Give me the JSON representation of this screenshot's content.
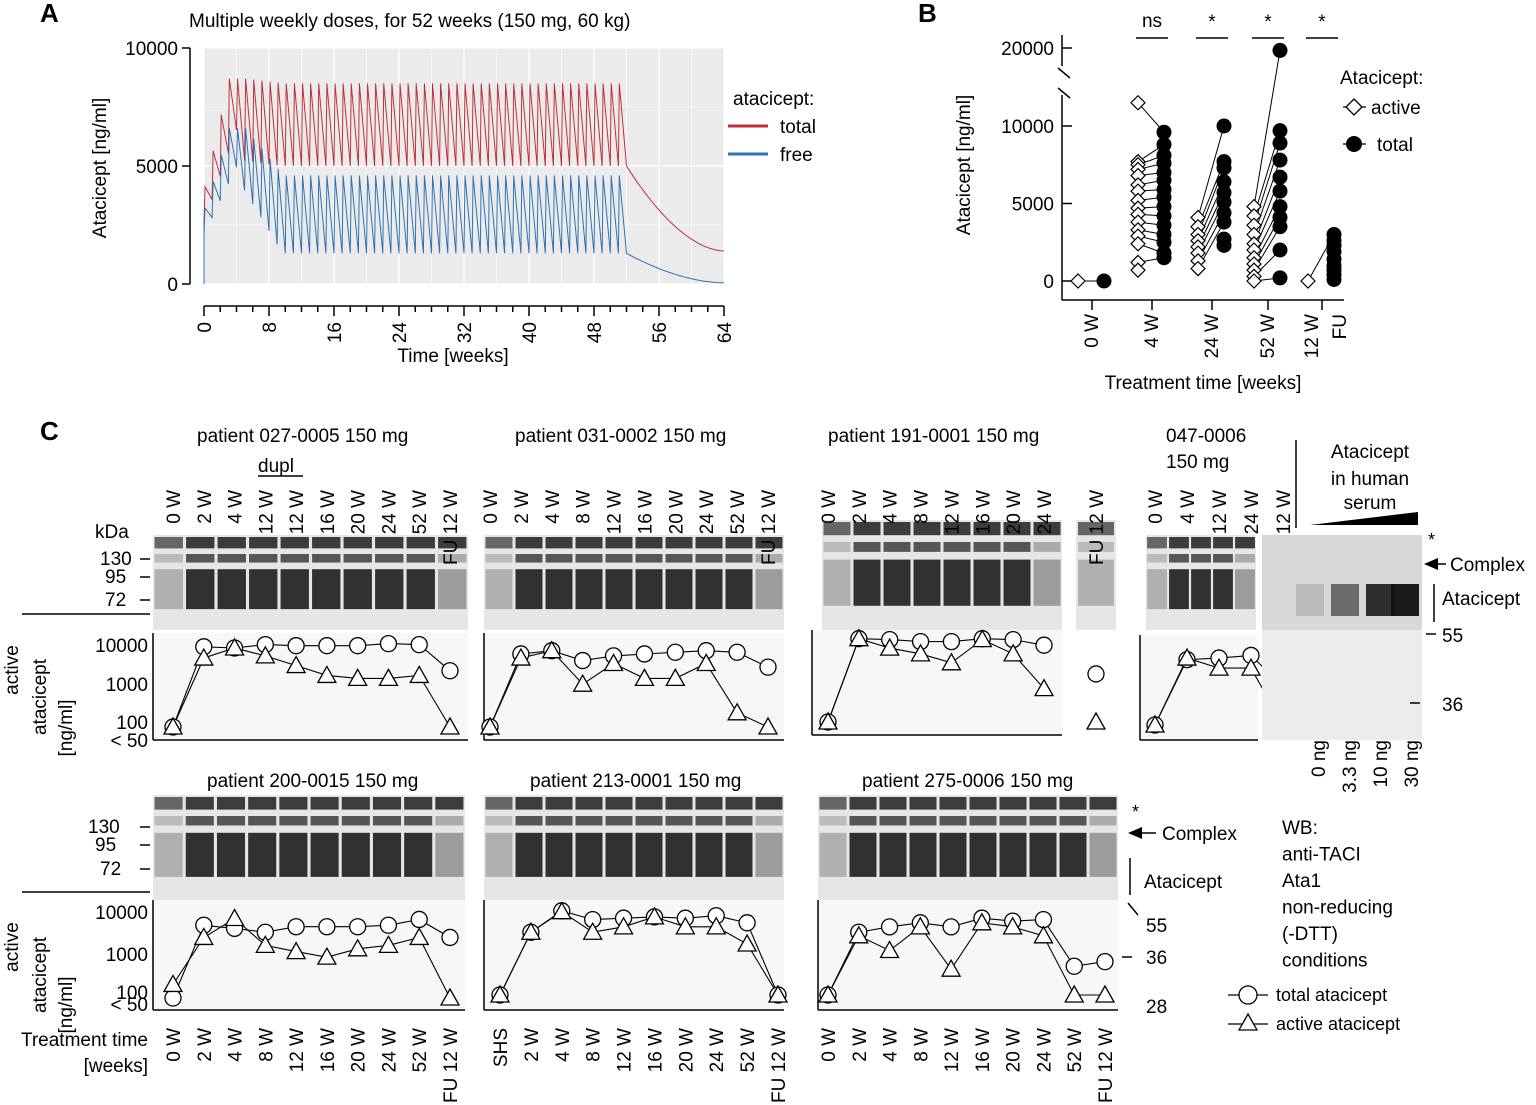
{
  "panels": {
    "A": {
      "letter": "A"
    },
    "B": {
      "letter": "B"
    },
    "C": {
      "letter": "C"
    }
  },
  "chart_data": [
    {
      "id": "A",
      "type": "line",
      "title": "Multiple weekly doses, for 52 weeks (150 mg, 60 kg)",
      "xlabel": "Time [weeks]",
      "ylabel": "Atacicept [ng/ml]",
      "xlim": [
        0,
        64
      ],
      "ylim": [
        0,
        10000
      ],
      "xticks": [
        0,
        8,
        16,
        24,
        32,
        40,
        48,
        56,
        64
      ],
      "yticks": [
        0,
        5000,
        10000
      ],
      "grid": true,
      "legend": {
        "title": "atacicept:",
        "placement": "right"
      },
      "series": [
        {
          "name": "total",
          "color": "#c0303a",
          "dose_weeks": 52,
          "start": 2600,
          "peak_early": 8700,
          "peak_ss": 8500,
          "trough_ss": 5000,
          "end_value": 1400
        },
        {
          "name": "free",
          "color": "#2f73b5",
          "dose_weeks": 52,
          "start": 2100,
          "peak_early": 6600,
          "peak_ss": 4600,
          "trough_ss": 1300,
          "end_value": 50
        }
      ]
    },
    {
      "id": "B",
      "type": "scatter",
      "xlabel": "Treatment time [weeks]",
      "ylabel": "Atacicept [ng/ml]",
      "categories": [
        "0 W",
        "4 W",
        "24 W",
        "52 W",
        "12 W FU"
      ],
      "category_lines": [
        [
          "0 W"
        ],
        [
          "4 W"
        ],
        [
          "24 W"
        ],
        [
          "52 W"
        ],
        [
          "12 W",
          "FU"
        ]
      ],
      "yticks": [
        0,
        5000,
        10000,
        20000
      ],
      "axis_break": [
        12000,
        19000
      ],
      "significance": [
        "",
        "ns",
        "*",
        "*",
        "*"
      ],
      "legend": {
        "title": "Atacicept:",
        "entries": [
          "active",
          "total"
        ],
        "placement": "top-right"
      },
      "series": [
        {
          "name": "active",
          "marker": "open-diamond",
          "values": [
            [
              0
            ],
            [
              11500,
              7700,
              7500,
              7200,
              6800,
              6200,
              5800,
              5200,
              4700,
              4300,
              3800,
              3300,
              2900,
              2400,
              1200,
              700
            ],
            [
              4100,
              3500,
              3000,
              2600,
              2200,
              1800,
              1300,
              800
            ],
            [
              4800,
              4200,
              3600,
              3000,
              2400,
              2000,
              1500,
              1100,
              700,
              300,
              0
            ],
            [
              0
            ]
          ]
        },
        {
          "name": "total",
          "marker": "filled-circle",
          "values": [
            [
              0
            ],
            [
              9600,
              8800,
              8100,
              7600,
              7000,
              6500,
              5900,
              5400,
              4800,
              4200,
              3600,
              3000,
              2500,
              1800,
              1500
            ],
            [
              10000,
              7700,
              7300,
              6400,
              5700,
              5100,
              4400,
              3800,
              2700,
              2300
            ],
            [
              19800,
              9700,
              8900,
              7800,
              6700,
              5800,
              4800,
              4100,
              3500,
              2000,
              200
            ],
            [
              3000,
              2600,
              2300,
              1900,
              1400,
              1000,
              700,
              400,
              100
            ]
          ]
        }
      ]
    },
    {
      "id": "C",
      "type": "line",
      "ylabel": "active atacicept [ng/ml]",
      "yticks": [
        "10000",
        "1000",
        "100",
        "< 50"
      ],
      "xlabel": "Treatment time [weeks]",
      "series_names": [
        "total atacicept",
        "active atacicept"
      ],
      "blots": [
        {
          "title": "patient 027-0005 150 mg",
          "dupl": "dupl",
          "lanes": [
            "0 W",
            "2 W",
            "4 W",
            "12 W",
            "12 W",
            "16 W",
            "20 W",
            "24 W",
            "52 W",
            "FU 12 W"
          ],
          "total": [
            25,
            7000,
            6500,
            8000,
            7500,
            7500,
            7500,
            8500,
            8000,
            1600
          ],
          "active": [
            25,
            3500,
            6500,
            4000,
            2200,
            1200,
            1000,
            1000,
            1200,
            25
          ]
        },
        {
          "title": "patient 031-0002 150 mg",
          "lanes": [
            "0 W",
            "2 W",
            "4 W",
            "8 W",
            "12 W",
            "16 W",
            "20 W",
            "24 W",
            "52 W",
            "FU 12 W"
          ],
          "total": [
            25,
            4500,
            5500,
            3000,
            4000,
            4500,
            5000,
            5500,
            5000,
            2000
          ],
          "active": [
            25,
            3500,
            5500,
            700,
            2500,
            1000,
            1000,
            2500,
            120,
            30
          ]
        },
        {
          "title": "patient 191-0001 150 mg",
          "lanes": [
            "0 W",
            "2 W",
            "4 W",
            "8 W",
            "12 W",
            "16 W",
            "20 W",
            "24 W",
            "FU 12 W"
          ],
          "total": [
            25,
            9000,
            8500,
            7500,
            7500,
            9000,
            8500,
            6000,
            1000
          ],
          "active": [
            25,
            9000,
            5000,
            3500,
            2000,
            8500,
            3500,
            400,
            30
          ]
        },
        {
          "title": "047-0006",
          "title2": "150 mg",
          "lanes": [
            "0 W",
            "4 W",
            "12 W",
            "24 W",
            "FU 12 W"
          ],
          "total": [
            25,
            4500,
            5000,
            6000,
            700
          ],
          "active": [
            25,
            5000,
            2500,
            2500,
            30
          ]
        },
        {
          "title": "patient 200-0015 150 mg",
          "lanes": [
            "0 W",
            "2 W",
            "4 W",
            "8 W",
            "12 W",
            "16 W",
            "20 W",
            "24 W",
            "52 W",
            "FU 12 W"
          ],
          "total": [
            30,
            5500,
            4500,
            3500,
            5000,
            5000,
            5000,
            5500,
            8000,
            2500
          ],
          "active": [
            120,
            2500,
            8500,
            1500,
            1000,
            700,
            1200,
            1500,
            2500,
            40
          ]
        },
        {
          "title": "patient 213-0001 150 mg",
          "lanes": [
            "SHS",
            "2 W",
            "4 W",
            "8 W",
            "12 W",
            "16 W",
            "20 W",
            "24 W",
            "52 W",
            "FU 12 W"
          ],
          "total": [
            40,
            2500,
            9500,
            5500,
            6000,
            6500,
            6000,
            7000,
            4500,
            40
          ],
          "active": [
            40,
            2500,
            9000,
            2500,
            3500,
            6500,
            3500,
            3500,
            1200,
            40
          ]
        },
        {
          "title": "patient 275-0006 150 mg",
          "lanes": [
            "0 W",
            "2 W",
            "4 W",
            "8 W",
            "12 W",
            "16 W",
            "20 W",
            "24 W",
            "52 W",
            "FU 12 W"
          ],
          "total": [
            30,
            2500,
            3500,
            4500,
            3500,
            6000,
            5000,
            5500,
            300,
            400
          ],
          "active": [
            30,
            2000,
            800,
            3500,
            250,
            4500,
            3500,
            2000,
            40,
            40
          ]
        }
      ]
    }
  ],
  "blot_labels": {
    "kda": "kDa",
    "kda_top": [
      "130",
      "95",
      "72"
    ],
    "kda_right_top": [
      "55",
      "36"
    ],
    "kda_right_bottom": [
      "55",
      "36",
      "28"
    ],
    "star": "*",
    "complex": "Complex",
    "atacicept": "Atacicept",
    "spike_title": [
      "Atacicept",
      "in human",
      "serum"
    ],
    "spike_lanes": [
      "0 ng",
      "3.3 ng",
      "10 ng",
      "30 ng"
    ],
    "wb": [
      "WB:",
      "anti-TACI",
      "Ata1",
      "non-reducing",
      "(-DTT)",
      "conditions"
    ],
    "fu_lane": "FU 12 W",
    "treatment_time": [
      "Treatment time",
      "[weeks]"
    ],
    "active_label": [
      "active",
      "atacicept",
      "[ng/ml]"
    ]
  }
}
